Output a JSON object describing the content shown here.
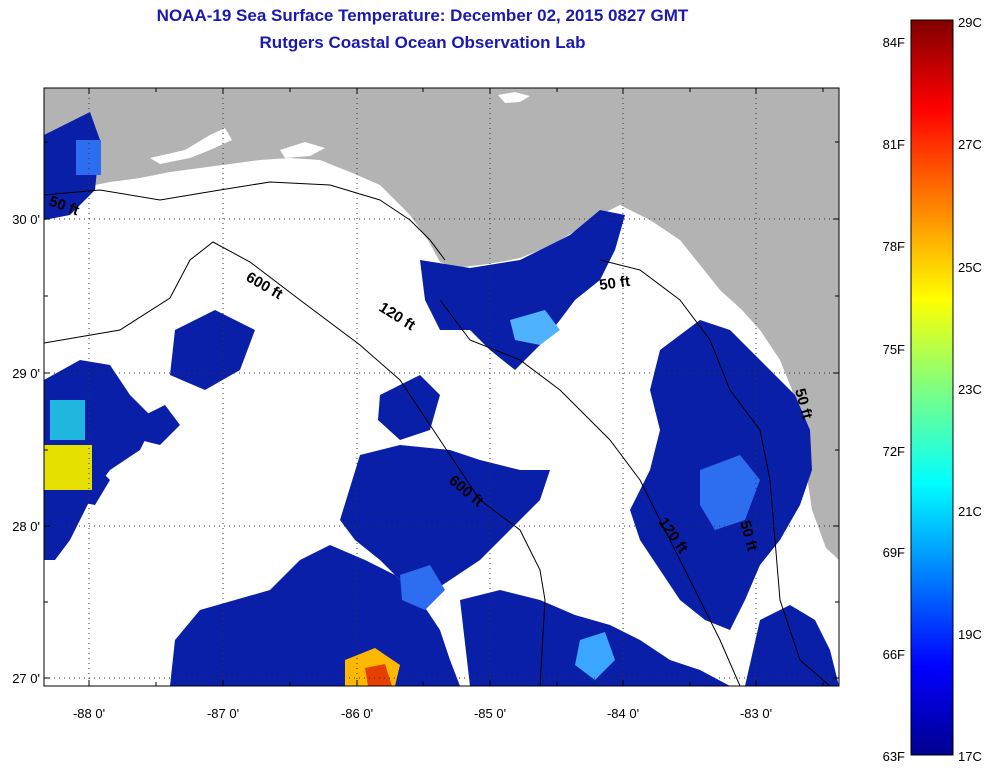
{
  "header": {
    "title": "NOAA-19 Sea Surface Temperature:  December 02, 2015 0827 GMT",
    "subtitle": "Rutgers Coastal Ocean Observation Lab"
  },
  "axes": {
    "lat_labels": [
      "30 0'",
      "29 0'",
      "28 0'",
      "27 0'"
    ],
    "lon_labels": [
      "-88 0'",
      "-87 0'",
      "-86 0'",
      "-85 0'",
      "-84 0'",
      "-83 0'"
    ]
  },
  "isobaths": {
    "shallow": "50 ft",
    "mid": "120 ft",
    "deep": "600 ft"
  },
  "colorbar": {
    "fahrenheit": [
      "84F",
      "81F",
      "78F",
      "75F",
      "72F",
      "69F",
      "66F",
      "63F"
    ],
    "celsius": [
      "29C",
      "27C",
      "25C",
      "23C",
      "21C",
      "19C",
      "17C"
    ],
    "colors": [
      "#00008f",
      "#0000ff",
      "#0080ff",
      "#00ffff",
      "#80ff80",
      "#ffff00",
      "#ff8000",
      "#ff0000",
      "#800000"
    ]
  },
  "palette": {
    "land": "#b3b3b3",
    "cloud": "#ffffff",
    "sst_cold": "#0a1fa8",
    "title": "#1a1ab0"
  }
}
